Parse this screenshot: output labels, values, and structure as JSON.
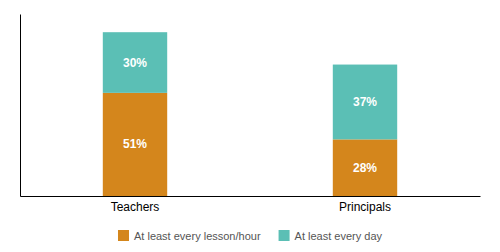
{
  "chart_data": {
    "type": "bar",
    "stacked": true,
    "categories": [
      "Teachers",
      "Principals"
    ],
    "series": [
      {
        "name": "At least every lesson/hour",
        "color": "#D4861C",
        "values": [
          51,
          28
        ],
        "value_labels": [
          "51%",
          "28%"
        ]
      },
      {
        "name": "At least every day",
        "color": "#5BBFB5",
        "values": [
          30,
          37
        ],
        "value_labels": [
          "30%",
          "37%"
        ]
      }
    ],
    "ylim": [
      0,
      90
    ],
    "data_labels": true,
    "tick_labels": "x",
    "grid": false,
    "legend": "bottom"
  }
}
